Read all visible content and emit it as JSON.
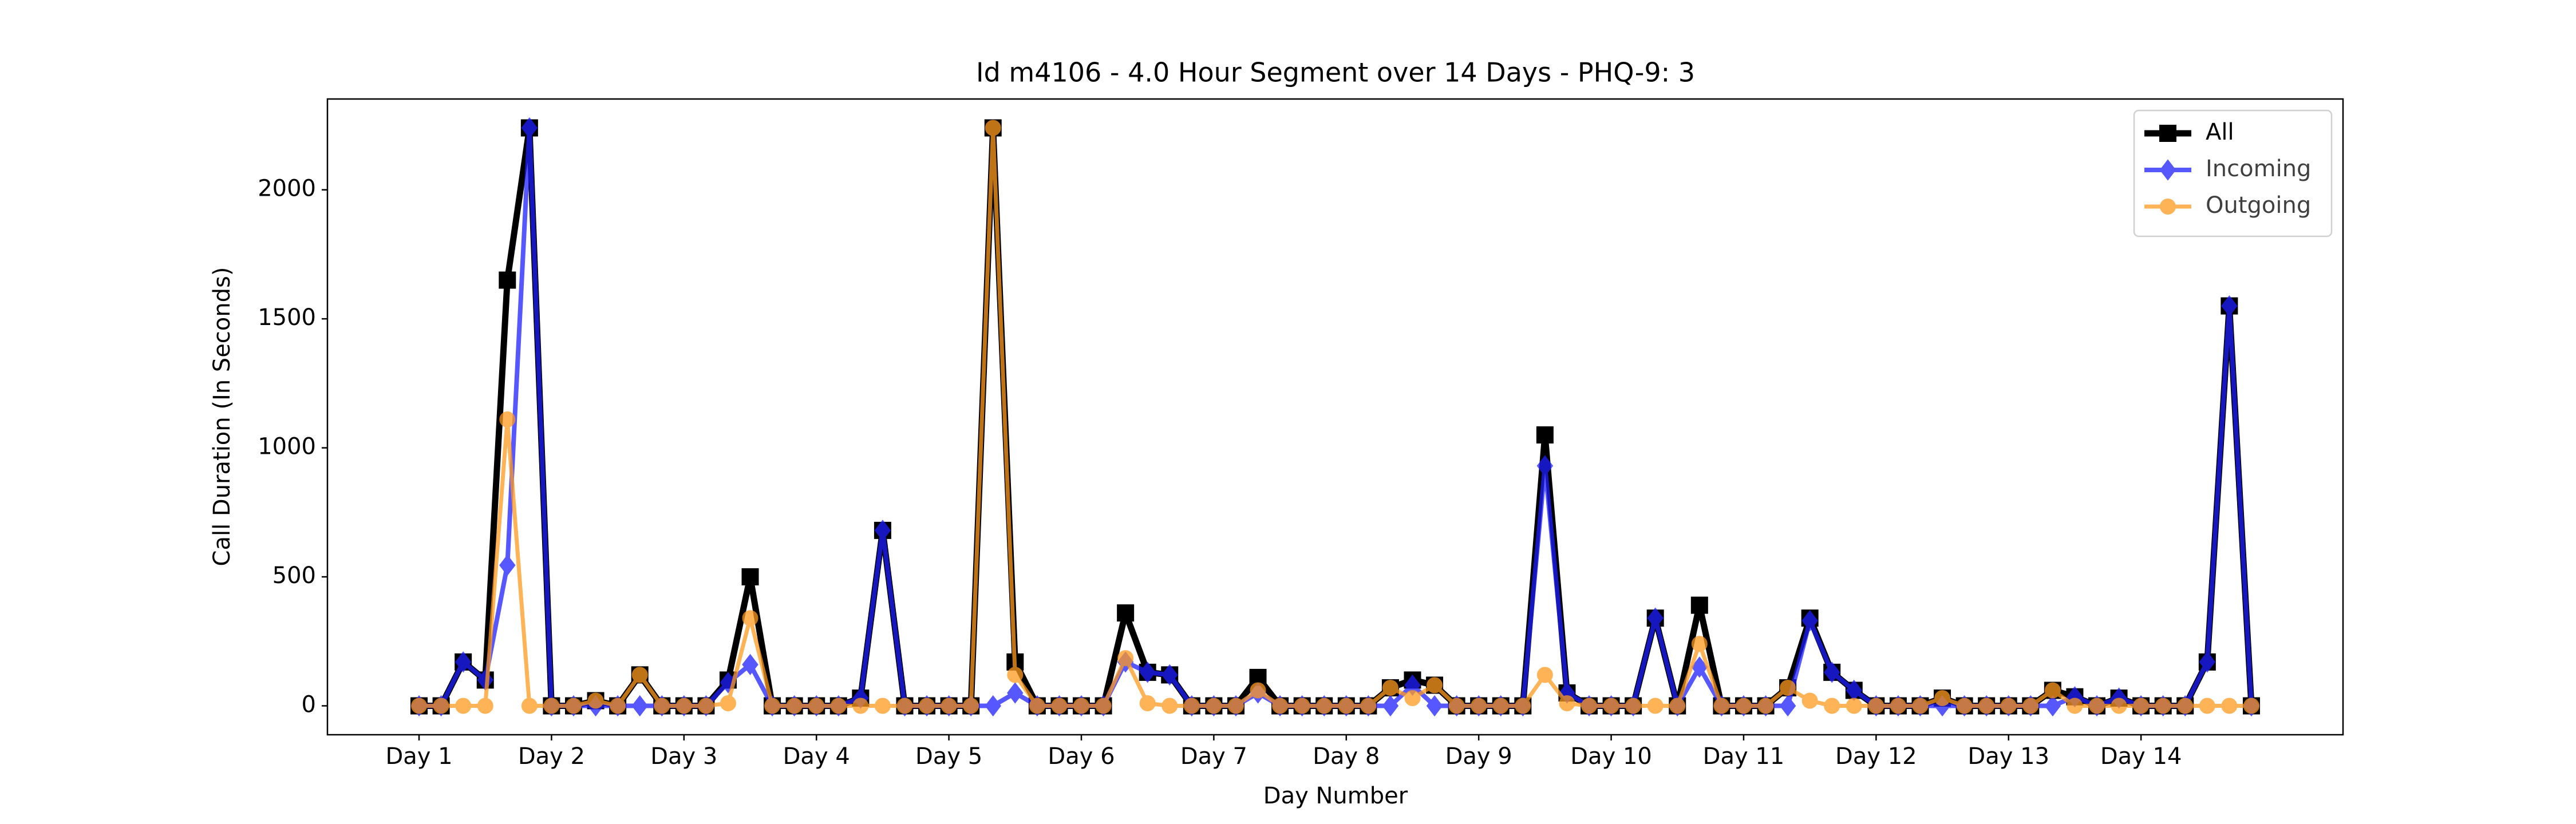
{
  "chart_data": {
    "type": "line",
    "title": "Id m4106 - 4.0 Hour Segment over 14 Days - PHQ-9: 3",
    "xlabel": "Day Number",
    "ylabel": "Call Duration (In Seconds)",
    "x": [
      0,
      1,
      2,
      3,
      4,
      5,
      6,
      7,
      8,
      9,
      10,
      11,
      12,
      13,
      14,
      15,
      16,
      17,
      18,
      19,
      20,
      21,
      22,
      23,
      24,
      25,
      26,
      27,
      28,
      29,
      30,
      31,
      32,
      33,
      34,
      35,
      36,
      37,
      38,
      39,
      40,
      41,
      42,
      43,
      44,
      45,
      46,
      47,
      48,
      49,
      50,
      51,
      52,
      53,
      54,
      55,
      56,
      57,
      58,
      59,
      60,
      61,
      62,
      63,
      64,
      65,
      66,
      67,
      68,
      69,
      70,
      71,
      72,
      73,
      74,
      75,
      76,
      77,
      78,
      79,
      80,
      81,
      82,
      83
    ],
    "xlim": [
      -4.15,
      87.15
    ],
    "xticks": [
      {
        "value": 0,
        "label": "Day 1"
      },
      {
        "value": 6,
        "label": "Day 2"
      },
      {
        "value": 12,
        "label": "Day 3"
      },
      {
        "value": 18,
        "label": "Day 4"
      },
      {
        "value": 24,
        "label": "Day 5"
      },
      {
        "value": 30,
        "label": "Day 6"
      },
      {
        "value": 36,
        "label": "Day 7"
      },
      {
        "value": 42,
        "label": "Day 8"
      },
      {
        "value": 48,
        "label": "Day 9"
      },
      {
        "value": 54,
        "label": "Day 10"
      },
      {
        "value": 60,
        "label": "Day 11"
      },
      {
        "value": 66,
        "label": "Day 12"
      },
      {
        "value": 72,
        "label": "Day 13"
      },
      {
        "value": 78,
        "label": "Day 14"
      }
    ],
    "ylim": [
      -112,
      2352
    ],
    "yticks": [
      0,
      500,
      1000,
      1500,
      2000
    ],
    "legend": "upper right",
    "series": [
      {
        "name": "All",
        "color": "#000000",
        "marker": "square",
        "values": [
          0,
          0,
          170,
          100,
          1650,
          2240,
          0,
          0,
          20,
          0,
          120,
          0,
          0,
          0,
          100,
          500,
          0,
          0,
          0,
          0,
          30,
          680,
          0,
          0,
          0,
          0,
          2240,
          170,
          0,
          0,
          0,
          0,
          360,
          130,
          120,
          0,
          0,
          0,
          110,
          0,
          0,
          0,
          0,
          0,
          70,
          100,
          80,
          0,
          0,
          0,
          0,
          1050,
          50,
          0,
          0,
          0,
          340,
          0,
          390,
          0,
          0,
          0,
          70,
          340,
          130,
          60,
          0,
          0,
          0,
          30,
          0,
          0,
          0,
          0,
          60,
          35,
          0,
          30,
          0,
          0,
          0,
          170,
          1550,
          0
        ]
      },
      {
        "name": "Incoming",
        "color": "#1f1fff",
        "marker": "diamond",
        "values": [
          0,
          0,
          170,
          100,
          545,
          2240,
          0,
          0,
          0,
          0,
          0,
          0,
          0,
          0,
          90,
          160,
          0,
          0,
          0,
          0,
          30,
          680,
          0,
          0,
          0,
          0,
          0,
          50,
          0,
          0,
          0,
          0,
          170,
          130,
          120,
          0,
          0,
          0,
          50,
          0,
          0,
          0,
          0,
          0,
          0,
          80,
          0,
          0,
          0,
          0,
          0,
          930,
          50,
          0,
          0,
          0,
          340,
          0,
          150,
          0,
          0,
          0,
          0,
          330,
          130,
          60,
          0,
          0,
          0,
          0,
          0,
          0,
          0,
          0,
          0,
          35,
          0,
          30,
          0,
          0,
          0,
          170,
          1550,
          0
        ]
      },
      {
        "name": "Outgoing",
        "color": "#ff9a1f",
        "marker": "circle",
        "values": [
          0,
          0,
          0,
          0,
          1110,
          0,
          0,
          0,
          20,
          0,
          120,
          0,
          0,
          0,
          10,
          340,
          0,
          0,
          0,
          0,
          0,
          0,
          0,
          0,
          0,
          0,
          2240,
          120,
          0,
          0,
          0,
          0,
          185,
          10,
          0,
          0,
          0,
          0,
          60,
          0,
          0,
          0,
          0,
          0,
          70,
          30,
          80,
          0,
          0,
          0,
          0,
          120,
          10,
          0,
          0,
          0,
          0,
          0,
          240,
          0,
          0,
          0,
          70,
          20,
          0,
          0,
          0,
          0,
          0,
          30,
          0,
          0,
          0,
          0,
          60,
          0,
          0,
          0,
          0,
          0,
          0,
          0,
          0,
          0
        ]
      }
    ]
  }
}
